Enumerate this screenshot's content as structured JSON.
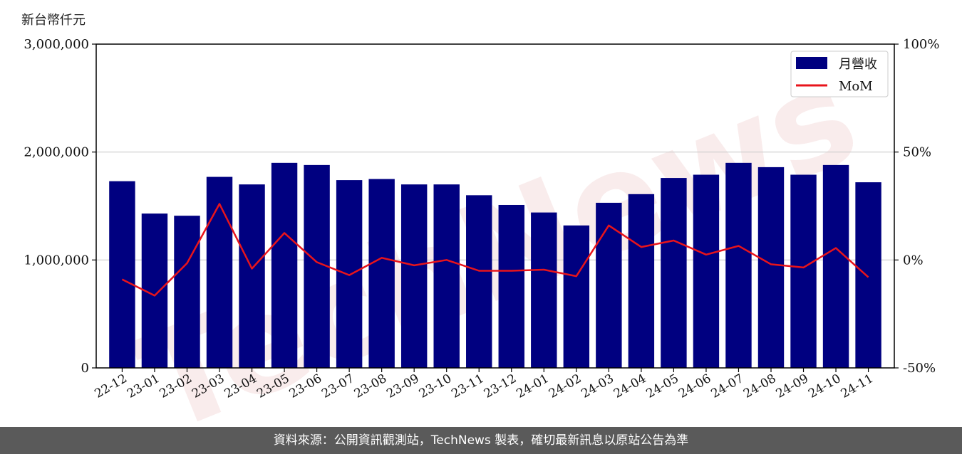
{
  "unit_label": "新台幣仟元",
  "footer_text": "資料來源：公開資訊觀測站，TechNews 製表，確切最新訊息以原站公告為準",
  "watermark": "TechNews",
  "colors": {
    "bar": "#000080",
    "line": "#e8141b",
    "footer_bg": "#5a5a5a",
    "grid": "#cccccc"
  },
  "chart_data": {
    "type": "bar",
    "categories": [
      "22-12",
      "23-01",
      "23-02",
      "23-03",
      "23-04",
      "23-05",
      "23-06",
      "23-07",
      "23-08",
      "23-09",
      "23-10",
      "23-11",
      "23-12",
      "24-01",
      "24-02",
      "24-03",
      "24-04",
      "24-05",
      "24-06",
      "24-07",
      "24-08",
      "24-09",
      "24-10",
      "24-11"
    ],
    "series": [
      {
        "name": "月營收",
        "type": "bar",
        "axis": "left",
        "values": [
          1730000,
          1430000,
          1410000,
          1770000,
          1700000,
          1900000,
          1880000,
          1740000,
          1750000,
          1700000,
          1700000,
          1600000,
          1510000,
          1440000,
          1320000,
          1530000,
          1610000,
          1760000,
          1790000,
          1900000,
          1860000,
          1790000,
          1880000,
          1720000
        ]
      },
      {
        "name": "MoM",
        "type": "line",
        "axis": "right",
        "values": [
          -9,
          -16.5,
          -1.5,
          26,
          -4,
          12.5,
          -1,
          -7,
          1,
          -2.5,
          0,
          -5,
          -5,
          -4.5,
          -7.5,
          16,
          6,
          9,
          2.5,
          6.5,
          -2,
          -3.5,
          5.5,
          -8
        ]
      }
    ],
    "ylim_left": [
      0,
      3000000
    ],
    "ylim_right": [
      -50,
      100
    ],
    "yticks_left": [
      "0",
      "1,000,000",
      "2,000,000",
      "3,000,000"
    ],
    "yticks_right": [
      "-50%",
      "0%",
      "50%",
      "100%"
    ],
    "grid": true,
    "legend_position": "top-right"
  }
}
